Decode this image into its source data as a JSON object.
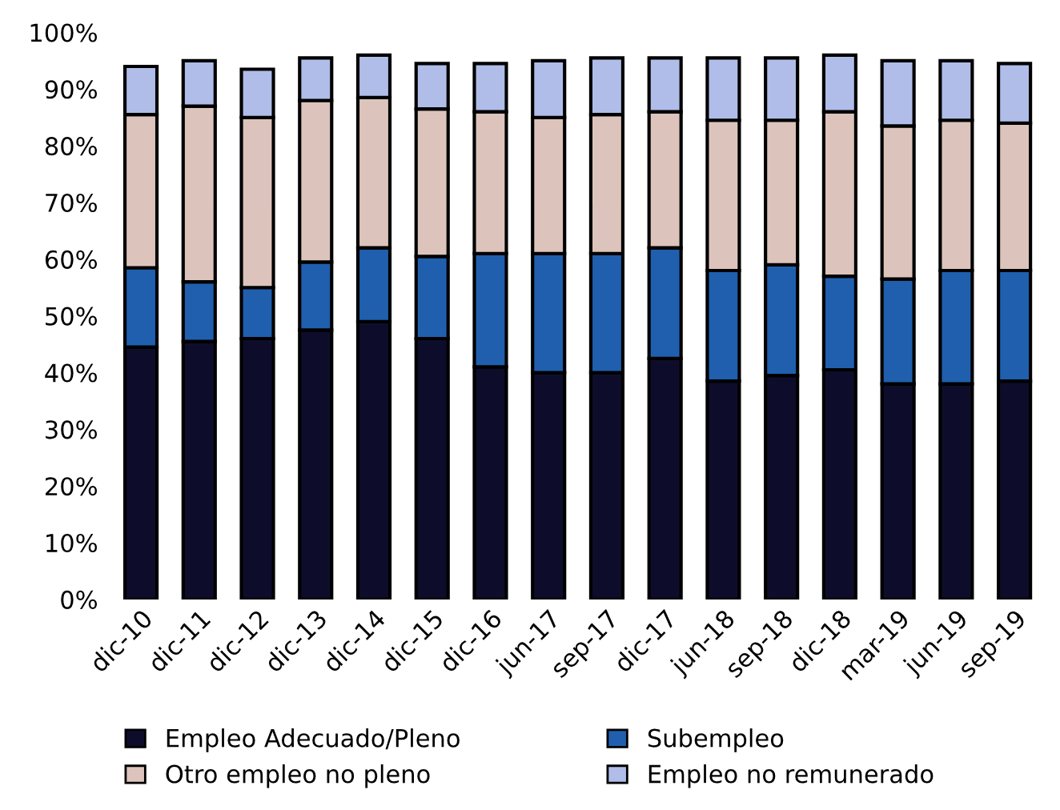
{
  "chart_data": {
    "type": "bar",
    "stacked": true,
    "categories": [
      "dic-10",
      "dic-11",
      "dic-12",
      "dic-13",
      "dic-14",
      "dic-15",
      "dic-16",
      "jun-17",
      "sep-17",
      "dic-17",
      "jun-18",
      "sep-18",
      "dic-18",
      "mar-19",
      "jun-19",
      "sep-19"
    ],
    "series": [
      {
        "name": "Empleo Adecuado/Pleno",
        "color": "#0d0d2b",
        "values": [
          44.5,
          45.5,
          46,
          47.5,
          49,
          46,
          41,
          40,
          40,
          42.5,
          38.5,
          39.5,
          40.5,
          38,
          38,
          38.5
        ]
      },
      {
        "name": "Subempleo",
        "color": "#1f5fae",
        "values": [
          14,
          10.5,
          9,
          12,
          13,
          14.5,
          20,
          21,
          21,
          19.5,
          19.5,
          19.5,
          16.5,
          18.5,
          20,
          19.5
        ]
      },
      {
        "name": "Otro empleo no pleno",
        "color": "#dcc4bc",
        "values": [
          27,
          31,
          30,
          28.5,
          26.5,
          26,
          25,
          24,
          24.5,
          24,
          26.5,
          25.5,
          29,
          27,
          26.5,
          26
        ]
      },
      {
        "name": "Empleo no remunerado",
        "color": "#b0bde8",
        "values": [
          8.5,
          8,
          8.5,
          7.5,
          7.5,
          8,
          8.5,
          10,
          10,
          9.5,
          11,
          11,
          10,
          11.5,
          10.5,
          10.5
        ]
      }
    ],
    "ylim": [
      0,
      100
    ],
    "yticks": [
      {
        "value": 0,
        "label": "0%"
      },
      {
        "value": 10,
        "label": "10%"
      },
      {
        "value": 20,
        "label": "20%"
      },
      {
        "value": 30,
        "label": "30%"
      },
      {
        "value": 40,
        "label": "40%"
      },
      {
        "value": 50,
        "label": "50%"
      },
      {
        "value": 60,
        "label": "60%"
      },
      {
        "value": 70,
        "label": "70%"
      },
      {
        "value": 80,
        "label": "80%"
      },
      {
        "value": 90,
        "label": "90%"
      },
      {
        "value": 100,
        "label": "100%"
      }
    ],
    "grid": false,
    "legend": "bottom"
  }
}
